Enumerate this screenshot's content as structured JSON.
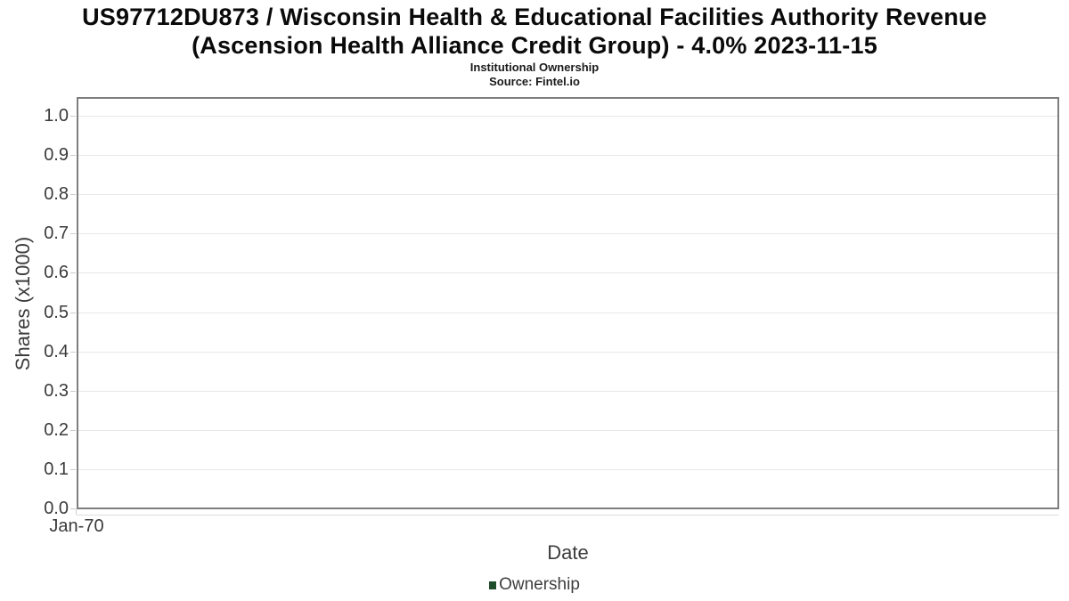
{
  "title": {
    "line1": "US97712DU873 / Wisconsin Health & Educational Facilities Authority Revenue",
    "line2": "(Ascension Health Alliance Credit Group) - 4.0% 2023-11-15"
  },
  "subtitle": "Institutional Ownership",
  "source": "Source: Fintel.io",
  "chart_data": {
    "type": "line",
    "title": "US97712DU873 / Wisconsin Health & Educational Facilities Authority Revenue (Ascension Health Alliance Credit Group) - 4.0% 2023-11-15",
    "subtitle": "Institutional Ownership",
    "source": "Source: Fintel.io",
    "xlabel": "Date",
    "ylabel": "Shares (x1000)",
    "x_ticks": [
      "Jan-70"
    ],
    "y_ticks": [
      "0.0",
      "0.1",
      "0.2",
      "0.3",
      "0.4",
      "0.5",
      "0.6",
      "0.7",
      "0.8",
      "0.9",
      "1.0"
    ],
    "ylim": [
      0.0,
      1.05
    ],
    "grid": true,
    "legend": {
      "position": "bottom",
      "entries": [
        {
          "label": "Ownership",
          "color": "#1f4d2b"
        }
      ]
    },
    "series": [
      {
        "name": "Ownership",
        "x": [],
        "values": []
      }
    ]
  },
  "colors": {
    "plot_border": "#7e7e7e",
    "gridline": "#e8e8e8",
    "tick_mark": "#cccccc",
    "legend_marker": "#1f4d2b"
  }
}
